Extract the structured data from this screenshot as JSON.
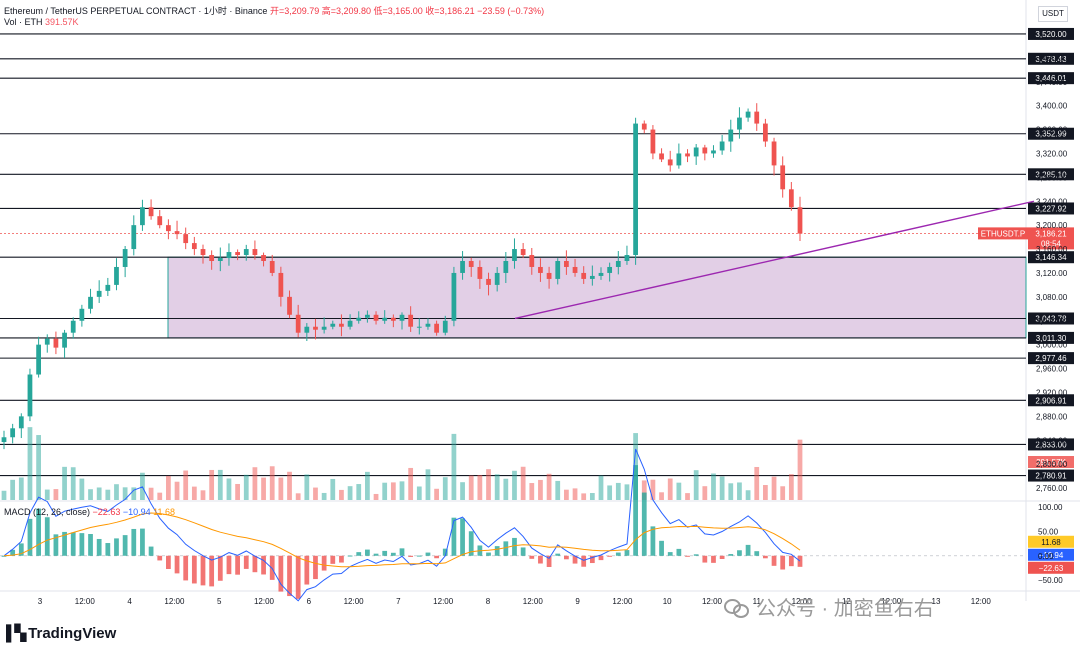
{
  "header": {
    "symbol": "Ethereum / TetherUS PERPETUAL CONTRACT · 1小时 · Binance",
    "ohlc": "开=3,209.79 高=3,209.80 低=3,165.00 收=3,186.21 −23.59 (−0.73%)",
    "vol_label": "Vol · ETH",
    "vol_value": "391.57K",
    "unit": "USDT"
  },
  "macd_header": {
    "label": "MACD (12, 26, close)",
    "hist": "−22.63",
    "macd": "−10.94",
    "signal": "11.68"
  },
  "footer": {
    "brand": "TradingView",
    "watermark": "公众号 · 加密鱼右右"
  },
  "colors": {
    "up": "#26a69a",
    "down": "#ef5350",
    "zone": "#d8bfdd",
    "zone_border": "#26a69a",
    "trendline": "#9c27b0",
    "macd": "#2962ff",
    "signal": "#ff9800"
  },
  "chart_data": [
    {
      "type": "candlestick",
      "symbol": "ETHUSDT.P",
      "interval": "1h",
      "x_ticks": [
        "3",
        "12:00",
        "4",
        "12:00",
        "5",
        "12:00",
        "6",
        "12:00",
        "7",
        "12:00",
        "8",
        "12:00",
        "9",
        "12:00",
        "10",
        "12:00",
        "11",
        "12:00",
        "12",
        "12:00",
        "13",
        "12:00"
      ],
      "y_ticks": [
        2760,
        2800,
        2840,
        2880,
        2920,
        2960,
        3000,
        3040,
        3080,
        3120,
        3160,
        3200,
        3240,
        3280,
        3320,
        3360,
        3400,
        3440,
        3480
      ],
      "ylim": [
        2740,
        3540
      ],
      "last_price": {
        "symbol": "ETHUSDT.P",
        "price": "3,186.21",
        "countdown": "08:54"
      },
      "horizontal_levels": [
        "3,520.00",
        "3,478.43",
        "3,446.01",
        "3,352.99",
        "3,285.10",
        "3,227.92",
        "3,146.34",
        "3,043.78",
        "3,011.30",
        "2,977.46",
        "2,906.91",
        "2,833.00",
        "2,780.91"
      ],
      "zone": {
        "top": 3146.34,
        "bottom": 3011.3
      },
      "trendline": {
        "from_price": 3043.78,
        "to_price": 3240.0
      },
      "volume_label": "391.57K",
      "close_series": [
        2845,
        2860,
        2880,
        2950,
        3000,
        3010,
        2995,
        3020,
        3040,
        3060,
        3080,
        3090,
        3100,
        3130,
        3160,
        3200,
        3230,
        3215,
        3200,
        3190,
        3185,
        3170,
        3160,
        3150,
        3140,
        3145,
        3155,
        3150,
        3160,
        3150,
        3140,
        3120,
        3080,
        3050,
        3020,
        3030,
        3025,
        3030,
        3035,
        3030,
        3040,
        3045,
        3050,
        3040,
        3045,
        3040,
        3050,
        3030,
        3030,
        3035,
        3020,
        3040,
        3120,
        3140,
        3130,
        3110,
        3100,
        3120,
        3140,
        3160,
        3150,
        3130,
        3120,
        3110,
        3140,
        3130,
        3120,
        3110,
        3115,
        3120,
        3130,
        3140,
        3150,
        3370,
        3360,
        3320,
        3310,
        3300,
        3320,
        3315,
        3330,
        3320,
        3325,
        3340,
        3360,
        3380,
        3390,
        3370,
        3340,
        3300,
        3260,
        3230,
        3186
      ]
    },
    {
      "type": "macd",
      "label": "MACD (12, 26, close)",
      "y_ticks": [
        100,
        50,
        0,
        -50
      ],
      "ylim": [
        -70,
        110
      ],
      "values": {
        "histogram": -22.63,
        "macd": -10.94,
        "signal": 11.68
      }
    }
  ]
}
